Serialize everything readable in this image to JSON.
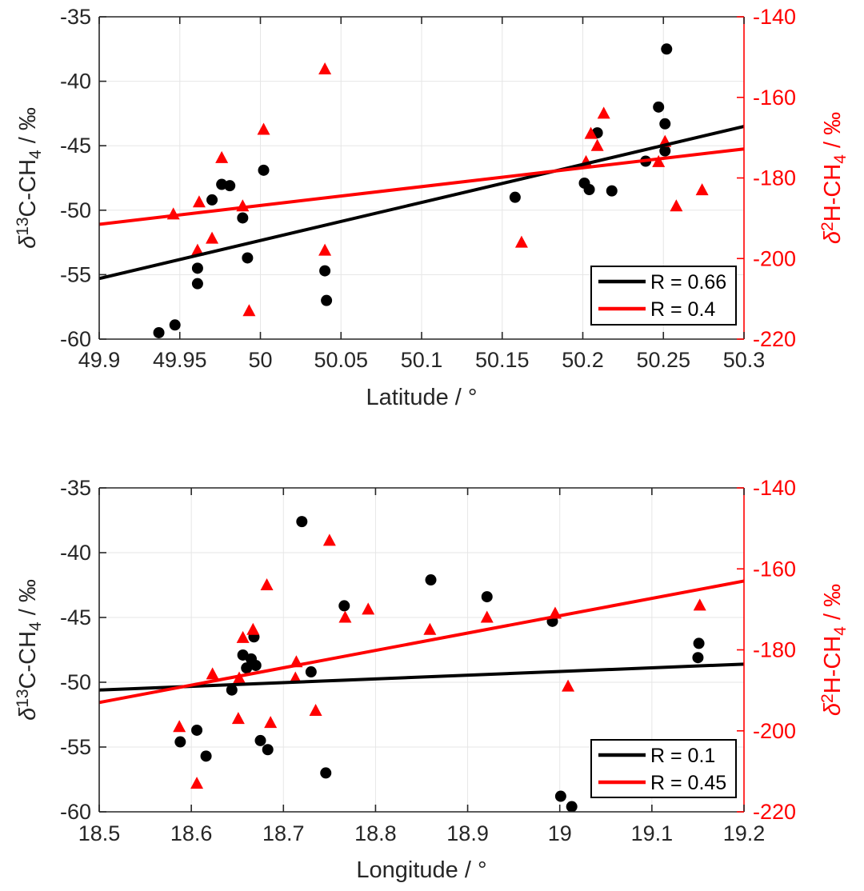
{
  "figure": {
    "background": "#ffffff",
    "colors": {
      "black_series": "#000000",
      "red_series": "#ff0000",
      "tick_text": "#262626",
      "legend_text": "#000000",
      "grid": "#e6e6e6",
      "axis_box": "#262626"
    }
  },
  "chart_data": [
    {
      "id": "latitude",
      "type": "scatter",
      "title": "",
      "xlabel": "Latitude / °",
      "xlabel_parts": [
        {
          "t": "Latitude / °"
        }
      ],
      "xlim": [
        49.9,
        50.3
      ],
      "x_ticks": [
        {
          "v": 49.9,
          "t": "49.9"
        },
        {
          "v": 49.95,
          "t": "49.95"
        },
        {
          "v": 50,
          "t": "50"
        },
        {
          "v": 50.05,
          "t": "50.05"
        },
        {
          "v": 50.1,
          "t": "50.1"
        },
        {
          "v": 50.15,
          "t": "50.15"
        },
        {
          "v": 50.2,
          "t": "50.2"
        },
        {
          "v": 50.25,
          "t": "50.25"
        },
        {
          "v": 50.3,
          "t": "50.3"
        }
      ],
      "y_left": {
        "label": "δ13C-CH4 / ‰",
        "label_parts": [
          {
            "t": "δ",
            "it": true
          },
          {
            "t": "13",
            "sc": "sup"
          },
          {
            "t": "C-CH"
          },
          {
            "t": "4",
            "sc": "sub"
          },
          {
            "t": " / ‰"
          }
        ],
        "lim": [
          -60,
          -35
        ],
        "ticks": [
          {
            "v": -35,
            "t": "-35"
          },
          {
            "v": -40,
            "t": "-40"
          },
          {
            "v": -45,
            "t": "-45"
          },
          {
            "v": -50,
            "t": "-50"
          },
          {
            "v": -55,
            "t": "-55"
          },
          {
            "v": -60,
            "t": "-60"
          }
        ],
        "color": "#000000"
      },
      "y_right": {
        "label": "δ2H-CH4 / ‰",
        "label_parts": [
          {
            "t": "δ",
            "it": true
          },
          {
            "t": "2",
            "sc": "sup"
          },
          {
            "t": "H-CH"
          },
          {
            "t": "4",
            "sc": "sub"
          },
          {
            "t": " / ‰"
          }
        ],
        "lim": [
          -220,
          -140
        ],
        "ticks": [
          {
            "v": -140,
            "t": "-140"
          },
          {
            "v": -160,
            "t": "-160"
          },
          {
            "v": -180,
            "t": "-180"
          },
          {
            "v": -200,
            "t": "-200"
          },
          {
            "v": -220,
            "t": "-220"
          }
        ],
        "color": "#ff0000"
      },
      "series": [
        {
          "name": "delta13C-CH4 vs latitude",
          "axis": "left",
          "marker": "circle",
          "color": "#000000",
          "points": [
            [
              49.937,
              -59.5
            ],
            [
              49.947,
              -58.9
            ],
            [
              49.961,
              -54.5
            ],
            [
              49.961,
              -55.7
            ],
            [
              49.97,
              -49.2
            ],
            [
              49.976,
              -48.0
            ],
            [
              49.981,
              -48.1
            ],
            [
              49.989,
              -50.6
            ],
            [
              49.992,
              -53.7
            ],
            [
              50.002,
              -46.9
            ],
            [
              50.04,
              -54.7
            ],
            [
              50.041,
              -57.0
            ],
            [
              50.158,
              -49.0
            ],
            [
              50.201,
              -47.9
            ],
            [
              50.204,
              -48.4
            ],
            [
              50.209,
              -44.0
            ],
            [
              50.218,
              -48.5
            ],
            [
              50.239,
              -46.2
            ],
            [
              50.247,
              -42.0
            ],
            [
              50.251,
              -43.3
            ],
            [
              50.251,
              -45.4
            ],
            [
              50.252,
              -37.5
            ]
          ]
        },
        {
          "name": "delta2H-CH4 vs latitude",
          "axis": "right",
          "marker": "triangle",
          "color": "#ff0000",
          "points": [
            [
              49.946,
              -189
            ],
            [
              49.961,
              -198
            ],
            [
              49.962,
              -186
            ],
            [
              49.97,
              -195
            ],
            [
              49.976,
              -175
            ],
            [
              49.989,
              -187
            ],
            [
              49.993,
              -213
            ],
            [
              50.002,
              -168
            ],
            [
              50.04,
              -153
            ],
            [
              50.04,
              -198
            ],
            [
              50.162,
              -196
            ],
            [
              50.202,
              -176
            ],
            [
              50.205,
              -169
            ],
            [
              50.209,
              -172
            ],
            [
              50.213,
              -164
            ],
            [
              50.247,
              -176
            ],
            [
              50.251,
              -171
            ],
            [
              50.258,
              -187
            ],
            [
              50.274,
              -183
            ]
          ]
        }
      ],
      "fits": [
        {
          "name": "delta13C linear fit",
          "axis": "left",
          "color": "#000000",
          "x": [
            49.9,
            50.3
          ],
          "y": [
            -55.3,
            -43.5
          ],
          "R": 0.66
        },
        {
          "name": "delta2H linear fit",
          "axis": "right",
          "color": "#ff0000",
          "x": [
            49.9,
            50.3
          ],
          "y": [
            -191.5,
            -172.8
          ],
          "R": 0.4
        }
      ],
      "legend": {
        "position": "lower-right",
        "entries": [
          {
            "label": "R = 0.66",
            "color": "#000000"
          },
          {
            "label": "R = 0.4",
            "color": "#ff0000"
          }
        ]
      },
      "grid": true
    },
    {
      "id": "longitude",
      "type": "scatter",
      "title": "",
      "xlabel": "Longitude / °",
      "xlabel_parts": [
        {
          "t": "Longitude / °"
        }
      ],
      "xlim": [
        18.5,
        19.2
      ],
      "x_ticks": [
        {
          "v": 18.5,
          "t": "18.5"
        },
        {
          "v": 18.6,
          "t": "18.6"
        },
        {
          "v": 18.7,
          "t": "18.7"
        },
        {
          "v": 18.8,
          "t": "18.8"
        },
        {
          "v": 18.9,
          "t": "18.9"
        },
        {
          "v": 19,
          "t": "19"
        },
        {
          "v": 19.1,
          "t": "19.1"
        },
        {
          "v": 19.2,
          "t": "19.2"
        }
      ],
      "y_left": {
        "label": "δ13C-CH4 / ‰",
        "label_parts": [
          {
            "t": "δ",
            "it": true
          },
          {
            "t": "13",
            "sc": "sup"
          },
          {
            "t": "C-CH"
          },
          {
            "t": "4",
            "sc": "sub"
          },
          {
            "t": " / ‰"
          }
        ],
        "lim": [
          -60,
          -35
        ],
        "ticks": [
          {
            "v": -35,
            "t": "-35"
          },
          {
            "v": -40,
            "t": "-40"
          },
          {
            "v": -45,
            "t": "-45"
          },
          {
            "v": -50,
            "t": "-50"
          },
          {
            "v": -55,
            "t": "-55"
          },
          {
            "v": -60,
            "t": "-60"
          }
        ],
        "color": "#000000"
      },
      "y_right": {
        "label": "δ2H-CH4 / ‰",
        "label_parts": [
          {
            "t": "δ",
            "it": true
          },
          {
            "t": "2",
            "sc": "sup"
          },
          {
            "t": "H-CH"
          },
          {
            "t": "4",
            "sc": "sub"
          },
          {
            "t": " / ‰"
          }
        ],
        "lim": [
          -220,
          -140
        ],
        "ticks": [
          {
            "v": -140,
            "t": "-140"
          },
          {
            "v": -160,
            "t": "-160"
          },
          {
            "v": -180,
            "t": "-180"
          },
          {
            "v": -200,
            "t": "-200"
          },
          {
            "v": -220,
            "t": "-220"
          }
        ],
        "color": "#ff0000"
      },
      "series": [
        {
          "name": "delta13C-CH4 vs longitude",
          "axis": "left",
          "marker": "circle",
          "color": "#000000",
          "points": [
            [
              18.588,
              -54.6
            ],
            [
              18.606,
              -53.7
            ],
            [
              18.616,
              -55.7
            ],
            [
              18.644,
              -50.6
            ],
            [
              18.656,
              -47.9
            ],
            [
              18.66,
              -48.9
            ],
            [
              18.665,
              -48.2
            ],
            [
              18.668,
              -46.5
            ],
            [
              18.67,
              -48.7
            ],
            [
              18.675,
              -54.5
            ],
            [
              18.683,
              -55.2
            ],
            [
              18.72,
              -37.6
            ],
            [
              18.73,
              -49.2
            ],
            [
              18.746,
              -57.0
            ],
            [
              18.766,
              -44.1
            ],
            [
              18.86,
              -42.1
            ],
            [
              18.921,
              -43.4
            ],
            [
              18.992,
              -45.3
            ],
            [
              19.001,
              -58.8
            ],
            [
              19.013,
              -59.6
            ],
            [
              19.15,
              -48.1
            ],
            [
              19.151,
              -47.0
            ]
          ]
        },
        {
          "name": "delta2H-CH4 vs longitude",
          "axis": "right",
          "marker": "triangle",
          "color": "#ff0000",
          "points": [
            [
              18.587,
              -199
            ],
            [
              18.606,
              -213
            ],
            [
              18.623,
              -186
            ],
            [
              18.651,
              -197
            ],
            [
              18.652,
              -187
            ],
            [
              18.656,
              -177
            ],
            [
              18.667,
              -175
            ],
            [
              18.682,
              -164
            ],
            [
              18.686,
              -198
            ],
            [
              18.713,
              -187
            ],
            [
              18.714,
              -183
            ],
            [
              18.735,
              -195
            ],
            [
              18.75,
              -153
            ],
            [
              18.767,
              -172
            ],
            [
              18.792,
              -170
            ],
            [
              18.859,
              -175
            ],
            [
              18.921,
              -172
            ],
            [
              18.995,
              -171
            ],
            [
              19.009,
              -189
            ],
            [
              19.152,
              -169
            ]
          ]
        }
      ],
      "fits": [
        {
          "name": "delta13C linear fit",
          "axis": "left",
          "color": "#000000",
          "x": [
            18.5,
            19.2
          ],
          "y": [
            -50.6,
            -48.6
          ],
          "R": 0.1
        },
        {
          "name": "delta2H linear fit",
          "axis": "right",
          "color": "#ff0000",
          "x": [
            18.5,
            19.2
          ],
          "y": [
            -193,
            -163
          ],
          "R": 0.45
        }
      ],
      "legend": {
        "position": "lower-right",
        "entries": [
          {
            "label": "R = 0.1",
            "color": "#000000"
          },
          {
            "label": "R = 0.45",
            "color": "#ff0000"
          }
        ]
      },
      "grid": true
    }
  ]
}
